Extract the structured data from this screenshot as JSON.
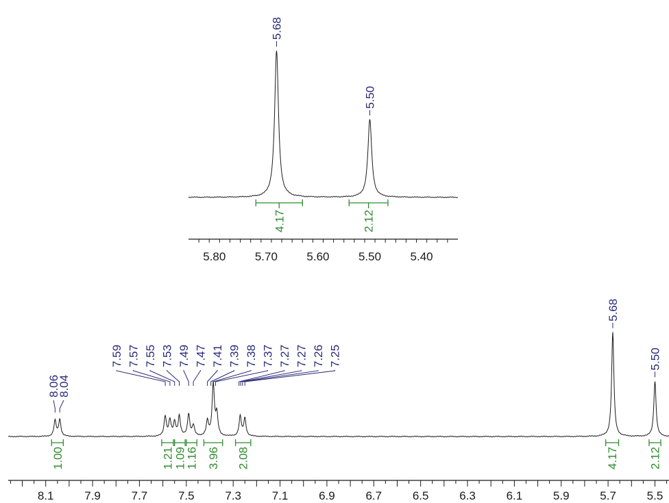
{
  "chart_data": [
    {
      "type": "line",
      "panel": "inset",
      "title": "",
      "xlabel": "",
      "ylabel": "",
      "xlim": [
        5.85,
        5.33
      ],
      "x_reversed": true,
      "xticks": [
        5.8,
        5.7,
        5.6,
        5.5,
        5.4
      ],
      "xtick_labels": [
        "5.80",
        "5.70",
        "5.60",
        "5.50",
        "5.40"
      ],
      "peaks": [
        {
          "label": "5.68",
          "shift": 5.68,
          "relative_height": 1.0
        },
        {
          "label": "5.50",
          "shift": 5.5,
          "relative_height": 0.53
        }
      ],
      "integrals": [
        {
          "label": "4.17",
          "from": 5.72,
          "to": 5.63
        },
        {
          "label": "2.12",
          "from": 5.54,
          "to": 5.465
        }
      ]
    },
    {
      "type": "line",
      "panel": "main",
      "title": "",
      "xlabel": "",
      "ylabel": "",
      "xlim": [
        8.26,
        5.44
      ],
      "x_reversed": true,
      "xticks": [
        8.1,
        7.9,
        7.7,
        7.5,
        7.3,
        7.1,
        6.9,
        6.7,
        6.5,
        6.3,
        6.1,
        5.9,
        5.7,
        5.5
      ],
      "xtick_labels": [
        "8.1",
        "7.9",
        "7.7",
        "7.5",
        "7.3",
        "7.1",
        "6.9",
        "6.7",
        "6.5",
        "6.3",
        "6.1",
        "5.9",
        "5.7",
        "5.5"
      ],
      "peak_labels_group_1": [
        "8.06",
        "8.04"
      ],
      "peak_labels_group_2": [
        "7.59",
        "7.57",
        "7.55",
        "7.53",
        "7.49",
        "7.47",
        "7.41",
        "7.39",
        "7.38",
        "7.37",
        "7.27",
        "7.27",
        "7.26",
        "7.25"
      ],
      "peak_labels_single": [
        "5.68",
        "5.50"
      ],
      "integrals": [
        {
          "label": "1.00",
          "from": 8.075,
          "to": 8.025
        },
        {
          "label": "1.21",
          "from": 7.605,
          "to": 7.555
        },
        {
          "label": "1.09",
          "from": 7.55,
          "to": 7.505
        },
        {
          "label": "1.16",
          "from": 7.5,
          "to": 7.455
        },
        {
          "label": "3.96",
          "from": 7.425,
          "to": 7.345
        },
        {
          "label": "2.08",
          "from": 7.29,
          "to": 7.225
        },
        {
          "label": "4.17",
          "from": 5.71,
          "to": 5.655
        },
        {
          "label": "2.12",
          "from": 5.525,
          "to": 5.475
        }
      ],
      "signals": [
        {
          "shift": 8.06,
          "relative_height": 0.15
        },
        {
          "shift": 8.04,
          "relative_height": 0.16
        },
        {
          "shift": 7.59,
          "relative_height": 0.19
        },
        {
          "shift": 7.57,
          "relative_height": 0.15
        },
        {
          "shift": 7.55,
          "relative_height": 0.13
        },
        {
          "shift": 7.53,
          "relative_height": 0.19
        },
        {
          "shift": 7.49,
          "relative_height": 0.21
        },
        {
          "shift": 7.47,
          "relative_height": 0.1
        },
        {
          "shift": 7.41,
          "relative_height": 0.14
        },
        {
          "shift": 7.385,
          "relative_height": 0.5
        },
        {
          "shift": 7.37,
          "relative_height": 0.2
        },
        {
          "shift": 7.27,
          "relative_height": 0.19
        },
        {
          "shift": 7.25,
          "relative_height": 0.17
        },
        {
          "shift": 5.68,
          "relative_height": 1.0
        },
        {
          "shift": 5.5,
          "relative_height": 0.53
        }
      ]
    }
  ]
}
